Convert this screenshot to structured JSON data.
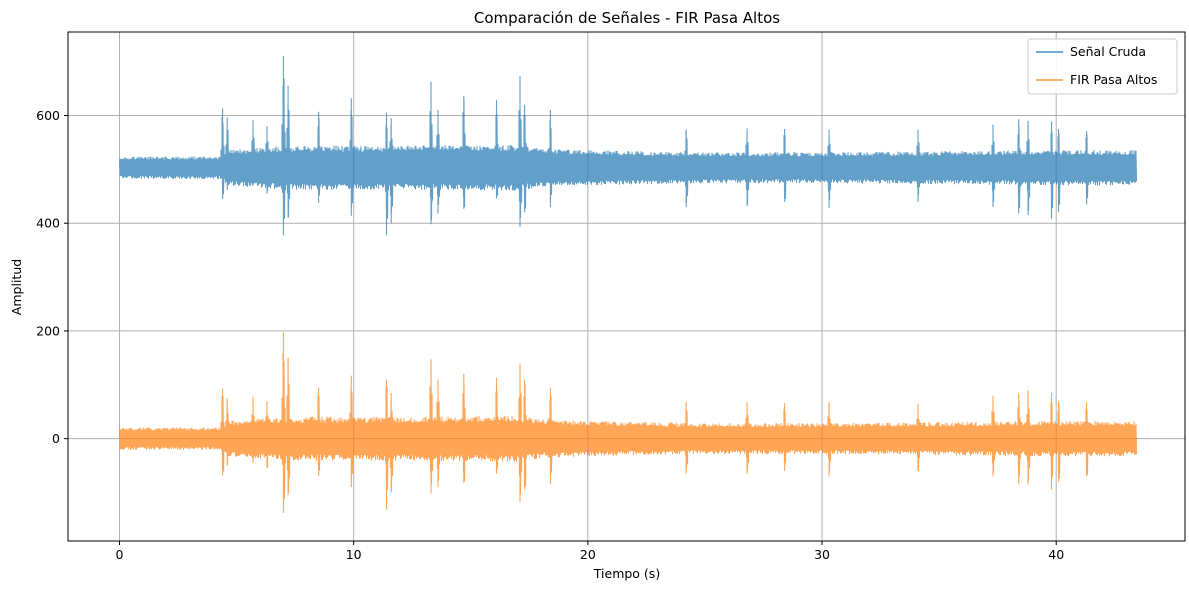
{
  "chart_data": {
    "type": "line",
    "title": "Comparación de Señales - FIR Pasa Altos",
    "xlabel": "Tiempo (s)",
    "ylabel": "Amplitud",
    "xlim": [
      -2.2,
      45.5
    ],
    "ylim": [
      -190,
      755
    ],
    "xticks": [
      0,
      10,
      20,
      30,
      40
    ],
    "yticks": [
      0,
      200,
      400,
      600
    ],
    "grid": true,
    "legend_position": "top-right",
    "x_range": [
      0,
      43.4
    ],
    "series": [
      {
        "name": "Señal Cruda",
        "color": "#1f77b4",
        "baseline": 503,
        "base_envelope": [
          [
            0,
            20
          ],
          [
            4.3,
            20
          ],
          [
            4.6,
            32
          ],
          [
            7,
            40
          ],
          [
            12,
            40
          ],
          [
            17,
            42
          ],
          [
            18,
            35
          ],
          [
            20,
            32
          ],
          [
            25,
            28
          ],
          [
            30,
            28
          ],
          [
            35,
            30
          ],
          [
            40,
            32
          ],
          [
            43.4,
            32
          ]
        ],
        "peaks": [
          {
            "x": 4.4,
            "max": 613,
            "min": 445
          },
          {
            "x": 4.6,
            "max": 596,
            "min": 462
          },
          {
            "x": 5.7,
            "max": 591,
            "min": 470
          },
          {
            "x": 6.3,
            "max": 580,
            "min": 455
          },
          {
            "x": 7.0,
            "max": 710,
            "min": 378
          },
          {
            "x": 7.2,
            "max": 655,
            "min": 410
          },
          {
            "x": 8.5,
            "max": 607,
            "min": 438
          },
          {
            "x": 9.9,
            "max": 632,
            "min": 414
          },
          {
            "x": 11.4,
            "max": 605,
            "min": 378
          },
          {
            "x": 11.6,
            "max": 595,
            "min": 400
          },
          {
            "x": 13.3,
            "max": 663,
            "min": 398
          },
          {
            "x": 13.6,
            "max": 610,
            "min": 418
          },
          {
            "x": 14.7,
            "max": 636,
            "min": 427
          },
          {
            "x": 16.1,
            "max": 629,
            "min": 446
          },
          {
            "x": 17.1,
            "max": 673,
            "min": 393
          },
          {
            "x": 17.3,
            "max": 620,
            "min": 420
          },
          {
            "x": 18.4,
            "max": 610,
            "min": 430
          },
          {
            "x": 24.2,
            "max": 574,
            "min": 430
          },
          {
            "x": 26.8,
            "max": 576,
            "min": 432
          },
          {
            "x": 28.4,
            "max": 575,
            "min": 440
          },
          {
            "x": 30.3,
            "max": 573,
            "min": 428
          },
          {
            "x": 34.1,
            "max": 574,
            "min": 440
          },
          {
            "x": 37.3,
            "max": 583,
            "min": 430
          },
          {
            "x": 38.4,
            "max": 593,
            "min": 418
          },
          {
            "x": 38.8,
            "max": 590,
            "min": 415
          },
          {
            "x": 39.8,
            "max": 589,
            "min": 408
          },
          {
            "x": 40.1,
            "max": 575,
            "min": 420
          },
          {
            "x": 41.3,
            "max": 571,
            "min": 435
          }
        ]
      },
      {
        "name": "FIR Pasa Altos",
        "color": "#ff7f0e",
        "baseline": 0,
        "base_envelope": [
          [
            0,
            20
          ],
          [
            4.3,
            20
          ],
          [
            4.6,
            32
          ],
          [
            7,
            40
          ],
          [
            12,
            40
          ],
          [
            17,
            42
          ],
          [
            18,
            35
          ],
          [
            20,
            32
          ],
          [
            25,
            28
          ],
          [
            30,
            28
          ],
          [
            35,
            30
          ],
          [
            40,
            32
          ],
          [
            43.4,
            32
          ]
        ],
        "peaks": [
          {
            "x": 4.4,
            "max": 93,
            "min": -68
          },
          {
            "x": 4.6,
            "max": 75,
            "min": -50
          },
          {
            "x": 5.7,
            "max": 78,
            "min": -45
          },
          {
            "x": 6.3,
            "max": 70,
            "min": -55
          },
          {
            "x": 7.0,
            "max": 198,
            "min": -138
          },
          {
            "x": 7.2,
            "max": 150,
            "min": -105
          },
          {
            "x": 8.5,
            "max": 95,
            "min": -70
          },
          {
            "x": 9.9,
            "max": 117,
            "min": -90
          },
          {
            "x": 11.4,
            "max": 110,
            "min": -132
          },
          {
            "x": 11.6,
            "max": 85,
            "min": -100
          },
          {
            "x": 13.3,
            "max": 147,
            "min": -102
          },
          {
            "x": 13.6,
            "max": 110,
            "min": -90
          },
          {
            "x": 14.7,
            "max": 120,
            "min": -82
          },
          {
            "x": 16.1,
            "max": 113,
            "min": -65
          },
          {
            "x": 17.1,
            "max": 140,
            "min": -118
          },
          {
            "x": 17.3,
            "max": 110,
            "min": -95
          },
          {
            "x": 18.4,
            "max": 95,
            "min": -85
          },
          {
            "x": 24.2,
            "max": 68,
            "min": -65
          },
          {
            "x": 26.8,
            "max": 68,
            "min": -65
          },
          {
            "x": 28.4,
            "max": 66,
            "min": -60
          },
          {
            "x": 30.3,
            "max": 68,
            "min": -70
          },
          {
            "x": 34.1,
            "max": 65,
            "min": -60
          },
          {
            "x": 37.3,
            "max": 80,
            "min": -70
          },
          {
            "x": 38.4,
            "max": 85,
            "min": -85
          },
          {
            "x": 38.8,
            "max": 90,
            "min": -85
          },
          {
            "x": 39.8,
            "max": 85,
            "min": -95
          },
          {
            "x": 40.1,
            "max": 70,
            "min": -80
          },
          {
            "x": 41.3,
            "max": 68,
            "min": -70
          }
        ]
      }
    ]
  }
}
